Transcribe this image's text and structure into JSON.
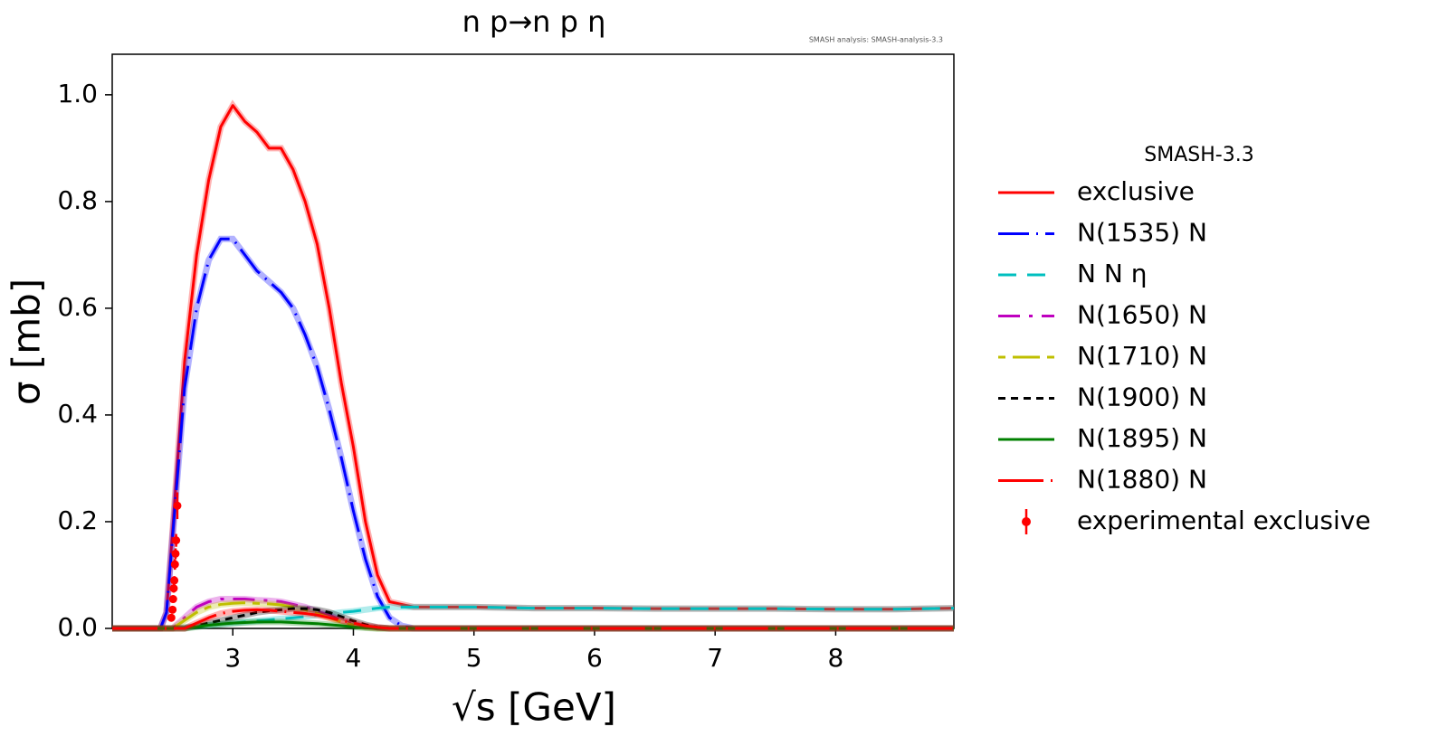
{
  "chart_data": {
    "type": "line",
    "title": "n p→n p η",
    "annotation": "SMASH analysis: SMASH-analysis-3.3",
    "x_label": "√s [GeV]",
    "y_label": "σ [mb]",
    "legend_title": "SMASH-3.3",
    "legend": "outside right",
    "xlim": [
      2.0,
      8.98
    ],
    "ylim": [
      0,
      1.076
    ],
    "xticks": [
      3,
      4,
      5,
      6,
      7,
      8
    ],
    "yticks": [
      {
        "value": 0,
        "label": "0.0"
      },
      0.2,
      0.4,
      0.6,
      0.8,
      {
        "value": 1,
        "label": "1.0"
      }
    ],
    "x": [
      2.0,
      2.4,
      2.45,
      2.5,
      2.6,
      2.7,
      2.8,
      2.9,
      3.0,
      3.1,
      3.2,
      3.3,
      3.4,
      3.5,
      3.6,
      3.7,
      3.8,
      3.9,
      4.0,
      4.1,
      4.2,
      4.3,
      4.4,
      4.5,
      5,
      5.5,
      6,
      6.5,
      7,
      7.5,
      8,
      8.5,
      8.98
    ],
    "series": [
      {
        "name": "exclusive",
        "color": "#ff0000",
        "dash": "none",
        "values": [
          0,
          0,
          0.03,
          0.18,
          0.5,
          0.7,
          0.84,
          0.94,
          0.98,
          0.95,
          0.93,
          0.9,
          0.9,
          0.86,
          0.8,
          0.72,
          0.6,
          0.46,
          0.34,
          0.2,
          0.1,
          0.05,
          0.045,
          0.04,
          0.04,
          0.038,
          0.038,
          0.037,
          0.037,
          0.037,
          0.036,
          0.036,
          0.038
        ]
      },
      {
        "name": "N(1535) N",
        "color": "#0000ff",
        "dash": "34,8,2,8",
        "values": [
          0,
          0,
          0.03,
          0.17,
          0.45,
          0.6,
          0.69,
          0.73,
          0.73,
          0.7,
          0.67,
          0.65,
          0.63,
          0.6,
          0.55,
          0.49,
          0.41,
          0.32,
          0.22,
          0.13,
          0.06,
          0.02,
          0.005,
          0,
          0,
          0,
          0,
          0,
          0,
          0,
          0,
          0,
          0
        ]
      },
      {
        "name": "N N η",
        "color": "#00bfbf",
        "dash": "20,12",
        "values": [
          0,
          0,
          0,
          0,
          0.002,
          0.004,
          0.006,
          0.008,
          0.01,
          0.012,
          0.014,
          0.016,
          0.018,
          0.02,
          0.022,
          0.025,
          0.027,
          0.03,
          0.032,
          0.035,
          0.038,
          0.04,
          0.04,
          0.04,
          0.04,
          0.038,
          0.038,
          0.037,
          0.037,
          0.037,
          0.036,
          0.036,
          0.038
        ]
      },
      {
        "name": "N(1650) N",
        "color": "#bf00bf",
        "dash": "24,10,4,10",
        "values": [
          0,
          0,
          0,
          0,
          0.02,
          0.04,
          0.05,
          0.055,
          0.055,
          0.055,
          0.053,
          0.052,
          0.05,
          0.045,
          0.04,
          0.032,
          0.025,
          0.015,
          0.008,
          0.003,
          0.001,
          0,
          0,
          0,
          0,
          0,
          0,
          0,
          0,
          0,
          0,
          0,
          0
        ]
      },
      {
        "name": "N(1710) N",
        "color": "#bfbf00",
        "dash": "8,8,30,8",
        "values": [
          0,
          0,
          0,
          0,
          0.015,
          0.03,
          0.04,
          0.045,
          0.047,
          0.048,
          0.047,
          0.046,
          0.044,
          0.04,
          0.035,
          0.028,
          0.02,
          0.012,
          0.006,
          0.002,
          0,
          0,
          0,
          0,
          0,
          0,
          0,
          0,
          0,
          0,
          0,
          0,
          0
        ]
      },
      {
        "name": "N(1900) N",
        "color": "#000000",
        "dash": "8,6",
        "values": [
          0,
          0,
          0,
          0,
          0,
          0.005,
          0.01,
          0.015,
          0.02,
          0.025,
          0.03,
          0.033,
          0.035,
          0.037,
          0.037,
          0.035,
          0.03,
          0.022,
          0.014,
          0.007,
          0.002,
          0,
          0,
          0,
          0,
          0,
          0,
          0,
          0,
          0,
          0,
          0,
          0
        ]
      },
      {
        "name": "N(1895) N",
        "color": "#008000",
        "dash": "none",
        "values": [
          0,
          0,
          0,
          0,
          0,
          0.003,
          0.006,
          0.008,
          0.01,
          0.011,
          0.012,
          0.012,
          0.012,
          0.011,
          0.01,
          0.009,
          0.007,
          0.005,
          0.003,
          0.001,
          0,
          0,
          0,
          0,
          0,
          0,
          0,
          0,
          0,
          0,
          0,
          0,
          0
        ]
      },
      {
        "name": "N(1880) N",
        "color": "#ff0000",
        "dash": "50,8,2,8",
        "values": [
          0,
          0,
          0,
          0,
          0,
          0.01,
          0.02,
          0.028,
          0.032,
          0.034,
          0.035,
          0.034,
          0.032,
          0.03,
          0.028,
          0.025,
          0.02,
          0.015,
          0.01,
          0.005,
          0.002,
          0,
          0,
          0,
          0,
          0,
          0,
          0,
          0,
          0,
          0,
          0,
          0
        ]
      },
      {
        "name": "experimental exclusive",
        "color": "#ff0000",
        "marker": "errorbar",
        "x": [
          2.49,
          2.5,
          2.505,
          2.51,
          2.515,
          2.52,
          2.525,
          2.53,
          2.54
        ],
        "values": [
          0.02,
          0.035,
          0.055,
          0.075,
          0.09,
          0.12,
          0.14,
          0.165,
          0.23
        ],
        "errors": [
          0.005,
          0.006,
          0.007,
          0.008,
          0.008,
          0.01,
          0.01,
          0.012,
          0.025
        ]
      }
    ]
  }
}
